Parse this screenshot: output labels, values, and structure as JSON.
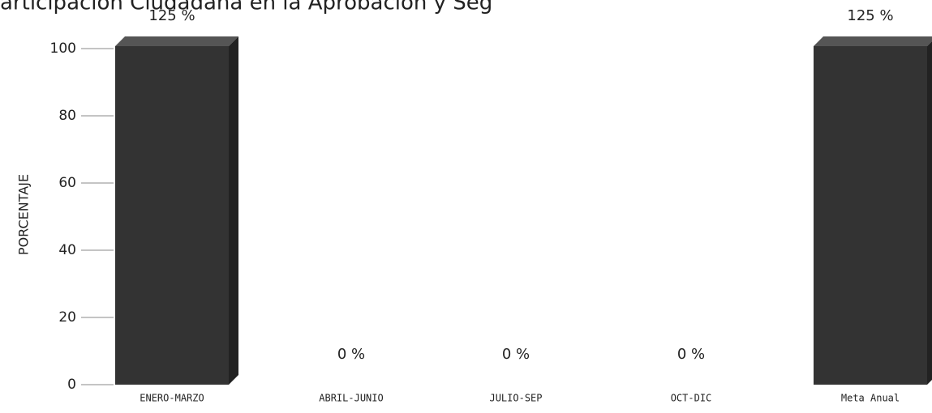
{
  "chart_data": {
    "type": "bar3d",
    "title": "articipación Ciudadana en la Aprobación y Seg",
    "y_label": "PORCENTAJE",
    "categories": [
      "ENERO-MARZO",
      "ABRIL-JUNIO",
      "JULIO-SEP",
      "OCT-DIC",
      "Meta Anual"
    ],
    "values": [
      125,
      0,
      0,
      0,
      125
    ],
    "value_labels": [
      "125 %",
      "0 %",
      "0 %",
      "0 %",
      "125 %"
    ],
    "color": "#333333",
    "ylim": [
      0,
      100
    ],
    "yticks": [
      0,
      20,
      40,
      60,
      80,
      100
    ],
    "grid": false
  }
}
